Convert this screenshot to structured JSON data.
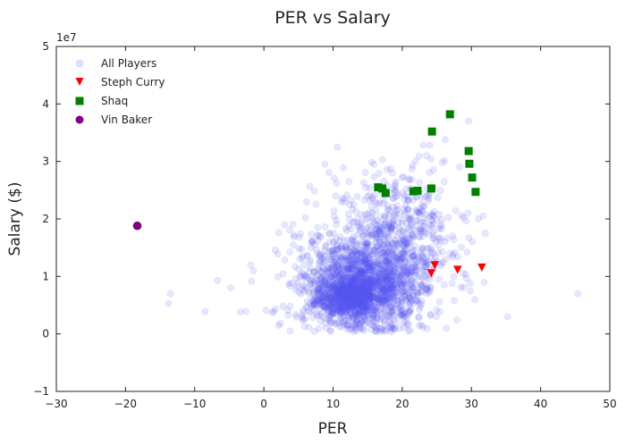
{
  "chart_data": {
    "type": "scatter",
    "title": "PER vs Salary",
    "xlabel": "PER",
    "ylabel": "Salary ($)",
    "y_multiplier_label": "1e7",
    "xlim": [
      -30,
      50
    ],
    "ylim": [
      -10000000,
      50000000
    ],
    "x_ticks": [
      -30,
      -20,
      -10,
      0,
      10,
      20,
      30,
      40,
      50
    ],
    "x_tick_labels": [
      "−30",
      "−20",
      "−10",
      "0",
      "10",
      "20",
      "30",
      "40",
      "50"
    ],
    "y_ticks": [
      -10000000,
      0,
      10000000,
      20000000,
      30000000,
      40000000,
      50000000
    ],
    "y_tick_labels": [
      "−1",
      "0",
      "1",
      "2",
      "3",
      "4",
      "5"
    ],
    "grid": false,
    "legend_position": "top-left",
    "background_series": {
      "name": "All Players",
      "color": "#5555ee",
      "marker": "circle",
      "notable_points": [
        {
          "x": -13.5,
          "y": 7000000
        },
        {
          "x": -13.8,
          "y": 5300000
        },
        {
          "x": -8.5,
          "y": 3900000
        },
        {
          "x": -6.7,
          "y": 9300000
        },
        {
          "x": -4.8,
          "y": 8000000
        },
        {
          "x": -3.4,
          "y": 3800000
        },
        {
          "x": -2.6,
          "y": 3900000
        },
        {
          "x": -1.9,
          "y": 12000000
        },
        {
          "x": -1.5,
          "y": 11000000
        },
        {
          "x": 0.3,
          "y": 4100000
        },
        {
          "x": 1.2,
          "y": 3700000
        },
        {
          "x": 2.4,
          "y": 1800000
        },
        {
          "x": 3.0,
          "y": 19000000
        },
        {
          "x": 4.2,
          "y": 19100000
        },
        {
          "x": 2.0,
          "y": 13900000
        },
        {
          "x": 4.5,
          "y": 11700000
        },
        {
          "x": 6.0,
          "y": 20200000
        },
        {
          "x": 7.3,
          "y": 24800000
        },
        {
          "x": 10.6,
          "y": 32500000
        },
        {
          "x": 11.5,
          "y": 28900000
        },
        {
          "x": 12.3,
          "y": 26500000
        },
        {
          "x": 15.9,
          "y": 29500000
        },
        {
          "x": 20.0,
          "y": 27200000
        },
        {
          "x": 21.5,
          "y": 29300000
        },
        {
          "x": 23.5,
          "y": 31000000
        },
        {
          "x": 24.5,
          "y": 28500000
        },
        {
          "x": 25.8,
          "y": 29800000
        },
        {
          "x": 26.2,
          "y": 33800000
        },
        {
          "x": 29.6,
          "y": 37000000
        },
        {
          "x": 28.3,
          "y": 29000000
        },
        {
          "x": 29.5,
          "y": 21000000
        },
        {
          "x": 31.0,
          "y": 20000000
        },
        {
          "x": 31.7,
          "y": 20500000
        },
        {
          "x": 32.0,
          "y": 17500000
        },
        {
          "x": 29.8,
          "y": 8800000
        },
        {
          "x": 30.5,
          "y": 6000000
        },
        {
          "x": 27.5,
          "y": 5800000
        },
        {
          "x": 35.2,
          "y": 3000000
        },
        {
          "x": 45.4,
          "y": 7000000
        },
        {
          "x": 11.0,
          "y": 1300000
        },
        {
          "x": 9.0,
          "y": 1000000
        },
        {
          "x": 3.8,
          "y": 500000
        },
        {
          "x": 14.0,
          "y": 900000
        },
        {
          "x": 18.5,
          "y": 800000
        },
        {
          "x": 23.0,
          "y": 1200000
        }
      ],
      "clusters": [
        {
          "cx": 12,
          "cy": 6500000,
          "sx": 2.3,
          "sy": 2000000,
          "n": 650
        },
        {
          "cx": 14,
          "cy": 8500000,
          "sx": 4.2,
          "sy": 4000000,
          "n": 1050
        },
        {
          "cx": 17,
          "cy": 13000000,
          "sx": 5.0,
          "sy": 6000000,
          "n": 750
        },
        {
          "cx": 21,
          "cy": 18000000,
          "sx": 3.5,
          "sy": 5000000,
          "n": 160
        }
      ]
    },
    "series": [
      {
        "name": "Steph Curry",
        "color": "#ff0000",
        "marker": "triangle-down",
        "x": [
          24.2,
          24.7,
          28.0,
          31.5
        ],
        "y": [
          10600000,
          12000000,
          11200000,
          11600000
        ]
      },
      {
        "name": "Shaq",
        "color": "#008000",
        "marker": "square",
        "x": [
          16.5,
          17.1,
          17.6,
          21.6,
          22.2,
          24.2,
          24.3,
          26.9,
          29.6,
          29.7,
          30.1,
          30.6
        ],
        "y": [
          25500000,
          25300000,
          24500000,
          24800000,
          24900000,
          25300000,
          35200000,
          38200000,
          31800000,
          29600000,
          27200000,
          24700000
        ]
      },
      {
        "name": "Vin Baker",
        "color": "#800080",
        "marker": "circle",
        "x": [
          -18.3
        ],
        "y": [
          18800000
        ]
      }
    ]
  }
}
